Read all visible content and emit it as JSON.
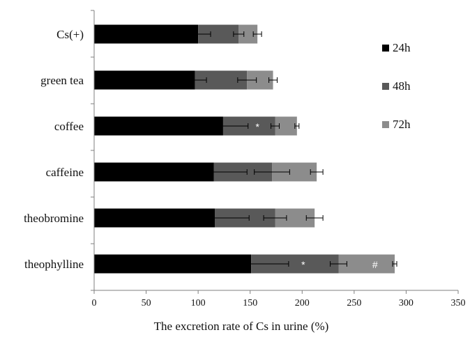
{
  "chart_data": {
    "type": "bar",
    "orientation": "horizontal",
    "stacked": true,
    "categories": [
      "Cs(+)",
      "green tea",
      "coffee",
      "caffeine",
      "theobromine",
      "theophylline"
    ],
    "series": [
      {
        "name": "24h",
        "color": "#000000",
        "values": [
          100,
          97,
          124,
          115,
          116,
          151
        ],
        "errors": [
          12,
          11,
          24,
          32,
          33,
          36
        ],
        "annotations": [
          "",
          "",
          "",
          "",
          "",
          ""
        ]
      },
      {
        "name": "48h",
        "color": "#595959",
        "values": [
          39,
          50,
          50,
          56,
          58,
          84
        ],
        "errors": [
          5,
          9,
          4,
          17,
          11,
          8
        ],
        "annotations": [
          "",
          "",
          "*",
          "",
          "",
          "*"
        ]
      },
      {
        "name": "72h",
        "color": "#8c8c8c",
        "values": [
          18,
          25,
          21,
          43,
          38,
          54
        ],
        "errors": [
          4,
          4,
          2,
          6,
          8,
          2
        ],
        "annotations": [
          "",
          "",
          "",
          "",
          "",
          "#"
        ]
      }
    ],
    "xlabel": "The excretion rate of Cs in urine (%)",
    "ylabel": "",
    "xlim": [
      0,
      350
    ],
    "xticks": [
      "0",
      "50",
      "100",
      "150",
      "200",
      "250",
      "300",
      "350"
    ],
    "grid": false,
    "legend": {
      "position": "right"
    }
  }
}
